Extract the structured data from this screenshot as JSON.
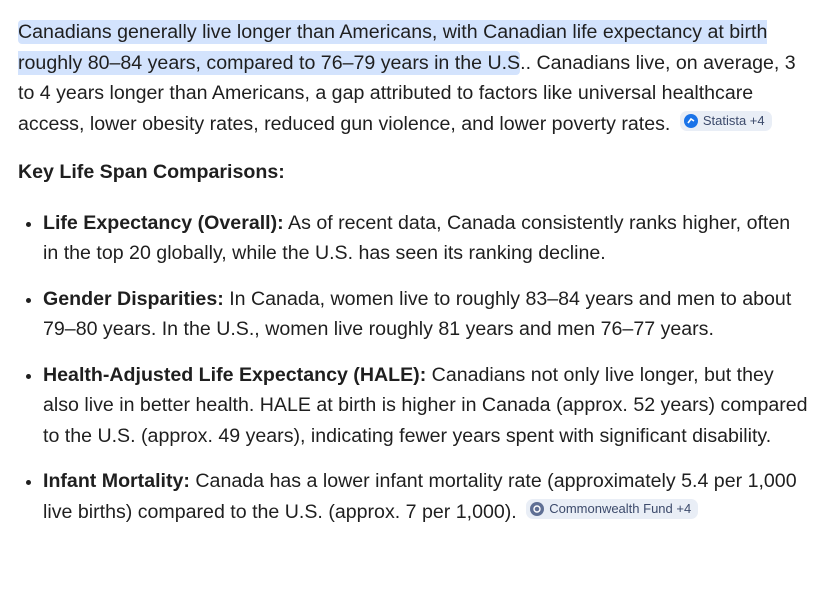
{
  "intro": {
    "highlight": "Canadians generally live longer than Americans, with Canadian life expectancy at birth roughly 80–84 years, compared to 76–79 years in the U.S",
    "text": ".. Canadians live, on average, 3 to 4 years longer than Americans, a gap attributed to factors like universal healthcare access, lower obesity rates, reduced gun violence, and lower poverty rates.",
    "source": "Statista +4"
  },
  "heading": "Key Life Span Comparisons:",
  "items": [
    {
      "label": "Life Expectancy (Overall):",
      "text": "As of recent data, Canada consistently ranks higher, often in the top 20 globally, while the U.S. has seen its ranking decline."
    },
    {
      "label": "Gender Disparities:",
      "text": "In Canada, women live to roughly 83–84 years and men to about 79–80 years. In the U.S., women live roughly 81 years and men 76–77 years."
    },
    {
      "label": "Health-Adjusted Life Expectancy (HALE):",
      "text": "Canadians not only live longer, but they also live in better health. HALE at birth is higher in Canada (approx. 52 years) compared to the U.S. (approx. 49 years), indicating fewer years spent with significant disability."
    },
    {
      "label": "Infant Mortality:",
      "text": "Canada has a lower infant mortality rate (approximately 5.4 per 1,000 live births) compared to the U.S. (approx. 7 per 1,000).",
      "source": "Commonwealth Fund +4"
    }
  ]
}
